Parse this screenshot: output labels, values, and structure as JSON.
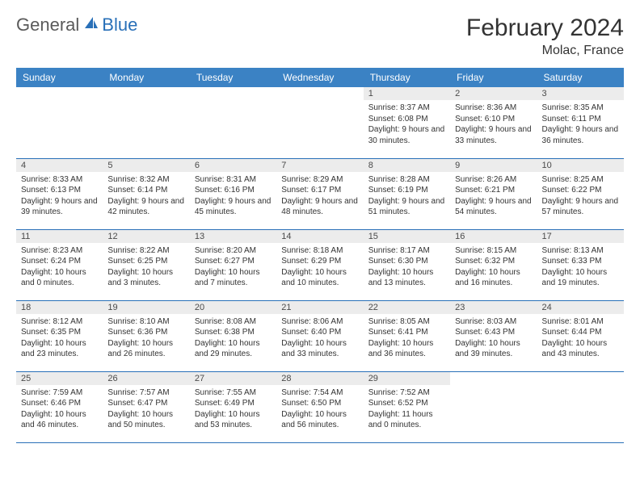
{
  "logo": {
    "text1": "General",
    "text2": "Blue"
  },
  "title": "February 2024",
  "location": "Molac, France",
  "colors": {
    "header_bg": "#3b82c4",
    "header_text": "#ffffff",
    "daynum_bg": "#ececec",
    "daynum_text": "#4a4a4a",
    "body_text": "#333333",
    "rule": "#2970b8",
    "logo_gray": "#5a5a5a",
    "logo_blue": "#2970b8"
  },
  "weekdays": [
    "Sunday",
    "Monday",
    "Tuesday",
    "Wednesday",
    "Thursday",
    "Friday",
    "Saturday"
  ],
  "first_weekday_index": 4,
  "days": [
    {
      "n": 1,
      "sunrise": "8:37 AM",
      "sunset": "6:08 PM",
      "daylight": "9 hours and 30 minutes."
    },
    {
      "n": 2,
      "sunrise": "8:36 AM",
      "sunset": "6:10 PM",
      "daylight": "9 hours and 33 minutes."
    },
    {
      "n": 3,
      "sunrise": "8:35 AM",
      "sunset": "6:11 PM",
      "daylight": "9 hours and 36 minutes."
    },
    {
      "n": 4,
      "sunrise": "8:33 AM",
      "sunset": "6:13 PM",
      "daylight": "9 hours and 39 minutes."
    },
    {
      "n": 5,
      "sunrise": "8:32 AM",
      "sunset": "6:14 PM",
      "daylight": "9 hours and 42 minutes."
    },
    {
      "n": 6,
      "sunrise": "8:31 AM",
      "sunset": "6:16 PM",
      "daylight": "9 hours and 45 minutes."
    },
    {
      "n": 7,
      "sunrise": "8:29 AM",
      "sunset": "6:17 PM",
      "daylight": "9 hours and 48 minutes."
    },
    {
      "n": 8,
      "sunrise": "8:28 AM",
      "sunset": "6:19 PM",
      "daylight": "9 hours and 51 minutes."
    },
    {
      "n": 9,
      "sunrise": "8:26 AM",
      "sunset": "6:21 PM",
      "daylight": "9 hours and 54 minutes."
    },
    {
      "n": 10,
      "sunrise": "8:25 AM",
      "sunset": "6:22 PM",
      "daylight": "9 hours and 57 minutes."
    },
    {
      "n": 11,
      "sunrise": "8:23 AM",
      "sunset": "6:24 PM",
      "daylight": "10 hours and 0 minutes."
    },
    {
      "n": 12,
      "sunrise": "8:22 AM",
      "sunset": "6:25 PM",
      "daylight": "10 hours and 3 minutes."
    },
    {
      "n": 13,
      "sunrise": "8:20 AM",
      "sunset": "6:27 PM",
      "daylight": "10 hours and 7 minutes."
    },
    {
      "n": 14,
      "sunrise": "8:18 AM",
      "sunset": "6:29 PM",
      "daylight": "10 hours and 10 minutes."
    },
    {
      "n": 15,
      "sunrise": "8:17 AM",
      "sunset": "6:30 PM",
      "daylight": "10 hours and 13 minutes."
    },
    {
      "n": 16,
      "sunrise": "8:15 AM",
      "sunset": "6:32 PM",
      "daylight": "10 hours and 16 minutes."
    },
    {
      "n": 17,
      "sunrise": "8:13 AM",
      "sunset": "6:33 PM",
      "daylight": "10 hours and 19 minutes."
    },
    {
      "n": 18,
      "sunrise": "8:12 AM",
      "sunset": "6:35 PM",
      "daylight": "10 hours and 23 minutes."
    },
    {
      "n": 19,
      "sunrise": "8:10 AM",
      "sunset": "6:36 PM",
      "daylight": "10 hours and 26 minutes."
    },
    {
      "n": 20,
      "sunrise": "8:08 AM",
      "sunset": "6:38 PM",
      "daylight": "10 hours and 29 minutes."
    },
    {
      "n": 21,
      "sunrise": "8:06 AM",
      "sunset": "6:40 PM",
      "daylight": "10 hours and 33 minutes."
    },
    {
      "n": 22,
      "sunrise": "8:05 AM",
      "sunset": "6:41 PM",
      "daylight": "10 hours and 36 minutes."
    },
    {
      "n": 23,
      "sunrise": "8:03 AM",
      "sunset": "6:43 PM",
      "daylight": "10 hours and 39 minutes."
    },
    {
      "n": 24,
      "sunrise": "8:01 AM",
      "sunset": "6:44 PM",
      "daylight": "10 hours and 43 minutes."
    },
    {
      "n": 25,
      "sunrise": "7:59 AM",
      "sunset": "6:46 PM",
      "daylight": "10 hours and 46 minutes."
    },
    {
      "n": 26,
      "sunrise": "7:57 AM",
      "sunset": "6:47 PM",
      "daylight": "10 hours and 50 minutes."
    },
    {
      "n": 27,
      "sunrise": "7:55 AM",
      "sunset": "6:49 PM",
      "daylight": "10 hours and 53 minutes."
    },
    {
      "n": 28,
      "sunrise": "7:54 AM",
      "sunset": "6:50 PM",
      "daylight": "10 hours and 56 minutes."
    },
    {
      "n": 29,
      "sunrise": "7:52 AM",
      "sunset": "6:52 PM",
      "daylight": "11 hours and 0 minutes."
    }
  ],
  "labels": {
    "sunrise": "Sunrise:",
    "sunset": "Sunset:",
    "daylight": "Daylight:"
  }
}
